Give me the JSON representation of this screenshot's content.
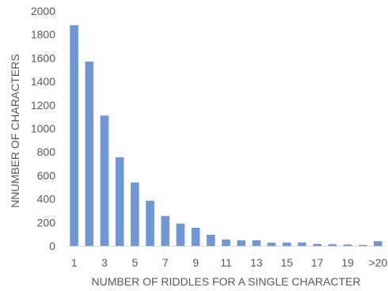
{
  "chart_data": {
    "type": "bar",
    "categories": [
      "1",
      "2",
      "3",
      "4",
      "5",
      "6",
      "7",
      "8",
      "9",
      "10",
      "11",
      "12",
      "13",
      "14",
      "15",
      "16",
      "17",
      "18",
      "19",
      "20",
      ">20"
    ],
    "tick_labels_shown": [
      "1",
      "3",
      "5",
      "7",
      "9",
      "11",
      "13",
      "15",
      "17",
      "19",
      ">20"
    ],
    "values": [
      1880,
      1570,
      1110,
      755,
      540,
      385,
      255,
      190,
      155,
      95,
      55,
      48,
      48,
      28,
      28,
      30,
      18,
      15,
      12,
      8,
      40
    ],
    "xlabel": "NUMBER OF RIDDLES FOR A SINGLE CHARACTER",
    "ylabel": "NNUMBER OF CHARACTERS",
    "ylim": [
      0,
      2000
    ],
    "yticks": [
      "0",
      "200",
      "400",
      "600",
      "800",
      "1000",
      "1200",
      "1400",
      "1600",
      "1800",
      "2000"
    ],
    "bar_color": "#6f96d6",
    "grid": false
  }
}
